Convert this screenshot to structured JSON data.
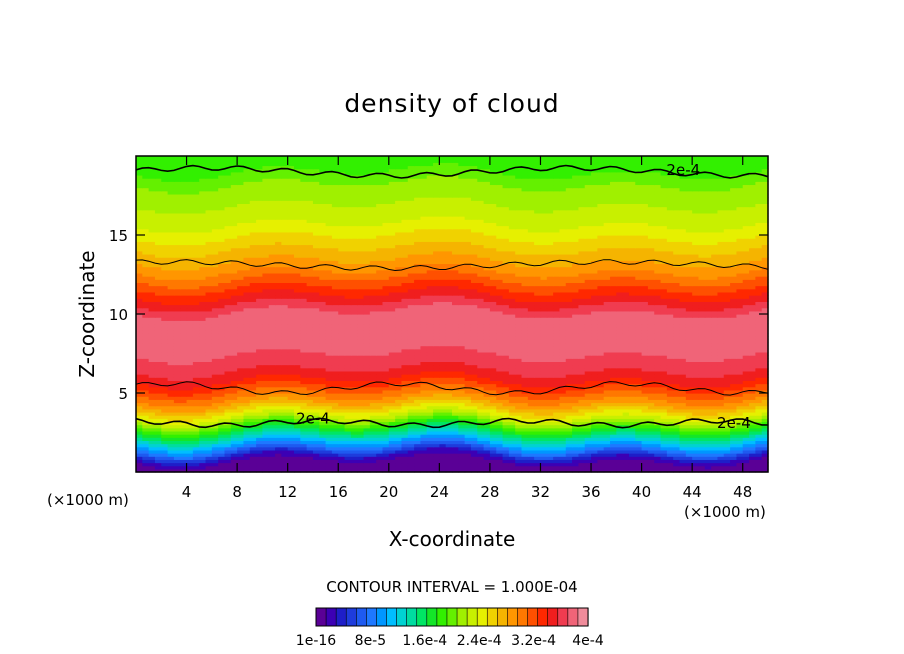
{
  "chart_data": {
    "type": "heatmap",
    "title": "density of cloud",
    "xlabel": "X-coordinate",
    "ylabel": "Z-coordinate",
    "x_unit_left": "(×1000 m)",
    "x_unit_right": "(×1000 m)",
    "xlim": [
      0,
      50
    ],
    "ylim": [
      0,
      20
    ],
    "x_ticks": [
      "4",
      "8",
      "12",
      "16",
      "20",
      "24",
      "28",
      "32",
      "36",
      "40",
      "44",
      "48"
    ],
    "y_ticks": [
      "5",
      "10",
      "15"
    ],
    "y_tick_values": [
      5,
      10,
      15
    ],
    "x_tick_values": [
      4,
      8,
      12,
      16,
      20,
      24,
      28,
      32,
      36,
      40,
      44,
      48
    ],
    "contour_interval_label": "CONTOUR INTERVAL = 1.000E-04",
    "contour_labels": [
      {
        "text": "2e-4",
        "x": 43.3,
        "z": 19.1
      },
      {
        "text": "2e-4",
        "x": 14.0,
        "z": 3.4
      },
      {
        "text": "2e-4",
        "x": 47.3,
        "z": 3.1
      }
    ],
    "colorbar": {
      "labels": [
        "1e-16",
        "8e-5",
        "1.6e-4",
        "2.4e-4",
        "3.2e-4",
        "4e-4"
      ],
      "colors": [
        "#5a0096",
        "#3c00b4",
        "#1e1ec8",
        "#1e3cdc",
        "#1e5af0",
        "#1e78ff",
        "#0096ff",
        "#00beff",
        "#00d2d2",
        "#00dca0",
        "#00e664",
        "#14e628",
        "#32f000",
        "#64f000",
        "#a0f000",
        "#c8f000",
        "#e6f000",
        "#f0d200",
        "#f5b400",
        "#ff9600",
        "#ff7800",
        "#ff5000",
        "#ff2800",
        "#f01e1e",
        "#f03c50",
        "#f06478",
        "#f08c9b"
      ]
    },
    "vertical_profile": {
      "z": [
        0.5,
        1.0,
        1.5,
        2.0,
        2.5,
        3.0,
        3.5,
        4.0,
        4.5,
        5.0,
        6.0,
        7.0,
        8.0,
        9.0,
        10.0,
        11.0,
        12.0,
        13.0,
        14.0,
        15.0,
        16.0,
        17.0,
        18.0,
        19.0,
        20.0
      ],
      "density": [
        0.0,
        3e-05,
        8e-05,
        0.00012,
        0.00016,
        0.0002,
        0.00024,
        0.00027,
        0.0003,
        0.00032,
        0.00036,
        0.00038,
        0.00039,
        0.0004,
        0.00039,
        0.00036,
        0.00033,
        0.0003,
        0.00028,
        0.00026,
        0.00024,
        0.00023,
        0.00022,
        0.0002,
        0.00019
      ]
    },
    "grid": false,
    "legend": "bottom"
  }
}
